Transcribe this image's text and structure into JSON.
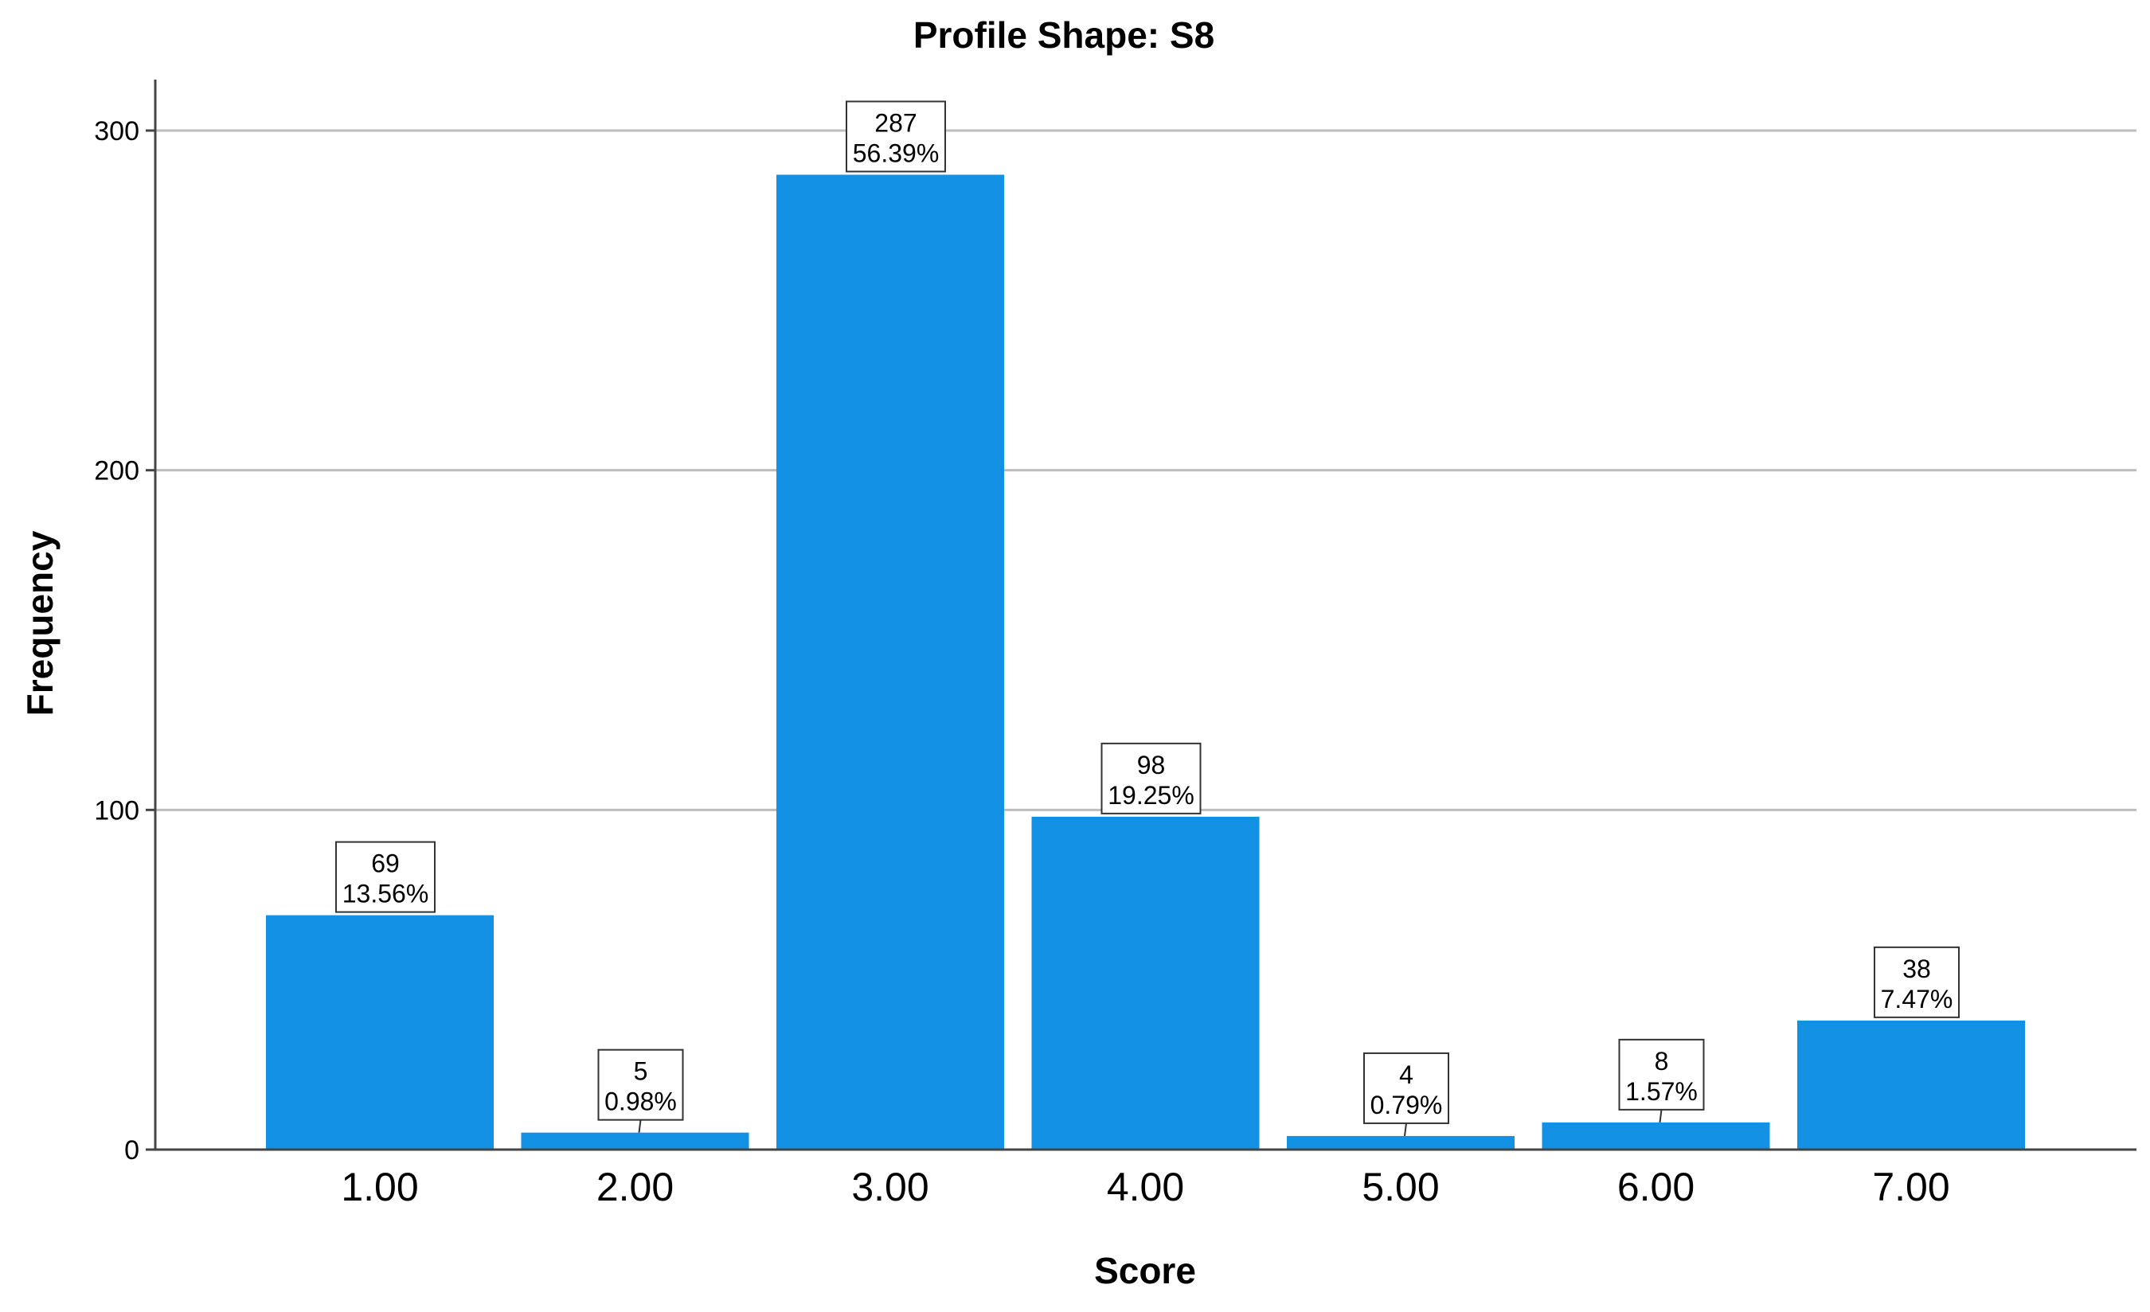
{
  "chart_data": {
    "type": "bar",
    "title": "Profile Shape: S8",
    "xlabel": "Score",
    "ylabel": "Frequency",
    "categories": [
      "1.00",
      "2.00",
      "3.00",
      "4.00",
      "5.00",
      "6.00",
      "7.00"
    ],
    "values": [
      69,
      5,
      287,
      98,
      4,
      8,
      38
    ],
    "percent_labels": [
      "13.56%",
      "0.98%",
      "56.39%",
      "19.25%",
      "0.79%",
      "1.57%",
      "7.47%"
    ],
    "ylim": [
      0,
      315
    ],
    "yticks": [
      0,
      100,
      200,
      300
    ],
    "grid": true,
    "bar_color": "#1391E5",
    "grid_color": "#BDBDBD",
    "axis_color": "#444444"
  }
}
